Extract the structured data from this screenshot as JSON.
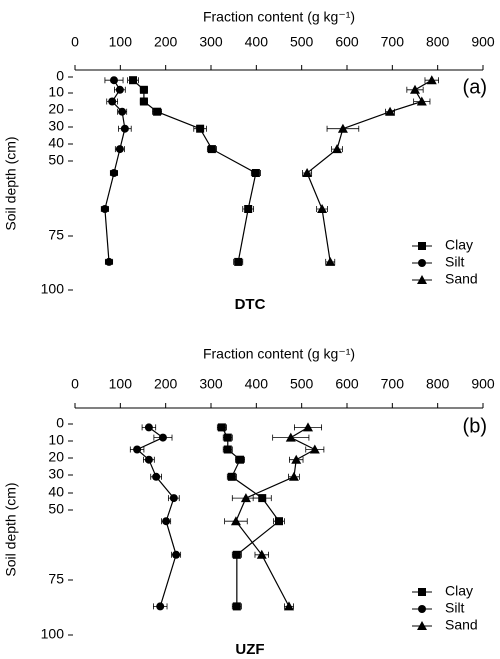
{
  "chart_data": [
    {
      "type": "line",
      "title": "DTC",
      "panel_label": "(a)",
      "x_label": "Fraction content (g kg⁻¹)",
      "y_label": "Soil depth (cm)",
      "xlim": [
        0,
        900
      ],
      "xticks": [
        0,
        100,
        200,
        300,
        400,
        500,
        600,
        700,
        800,
        900
      ],
      "ylim": [
        0,
        100
      ],
      "yticks": [
        0,
        10,
        20,
        30,
        40,
        50,
        75,
        100
      ],
      "y_inverted": true,
      "depths": [
        2,
        8,
        15,
        21,
        31,
        43,
        54,
        66,
        87
      ],
      "legend": "lower right",
      "series": [
        {
          "name": "Clay",
          "marker": "square",
          "color": "#000000",
          "values": [
            128,
            152,
            152,
            181,
            276,
            302,
            399,
            382,
            360
          ],
          "errors": [
            12,
            8,
            8,
            10,
            14,
            10,
            10,
            12,
            10
          ]
        },
        {
          "name": "Silt",
          "marker": "circle",
          "color": "#000000",
          "values": [
            86,
            99,
            82,
            104,
            110,
            99,
            86,
            66,
            75
          ],
          "errors": [
            20,
            12,
            12,
            10,
            14,
            10,
            8,
            8,
            8
          ]
        },
        {
          "name": "Sand",
          "marker": "triangle",
          "color": "#000000",
          "values": [
            787,
            750,
            765,
            695,
            591,
            578,
            512,
            545,
            563
          ],
          "errors": [
            15,
            18,
            18,
            10,
            35,
            12,
            10,
            12,
            10
          ]
        }
      ]
    },
    {
      "type": "line",
      "title": "UZF",
      "panel_label": "(b)",
      "x_label": "Fraction content (g kg⁻¹)",
      "y_label": "Soil depth (cm)",
      "xlim": [
        0,
        900
      ],
      "xticks": [
        0,
        100,
        200,
        300,
        400,
        500,
        600,
        700,
        800,
        900
      ],
      "ylim": [
        0,
        100
      ],
      "yticks": [
        0,
        10,
        20,
        30,
        40,
        50,
        75,
        100
      ],
      "y_inverted": true,
      "depths": [
        2,
        8,
        15,
        21,
        31,
        43,
        54,
        66,
        87
      ],
      "legend": "lower right",
      "series": [
        {
          "name": "Clay",
          "marker": "square",
          "color": "#000000",
          "values": [
            324,
            337,
            337,
            364,
            346,
            413,
            450,
            357,
            357
          ],
          "errors": [
            10,
            10,
            10,
            10,
            10,
            20,
            12,
            10,
            10
          ]
        },
        {
          "name": "Silt",
          "marker": "circle",
          "color": "#000000",
          "values": [
            163,
            194,
            137,
            163,
            179,
            218,
            201,
            223,
            188
          ],
          "errors": [
            15,
            20,
            15,
            12,
            12,
            12,
            10,
            10,
            15
          ]
        },
        {
          "name": "Sand",
          "marker": "triangle",
          "color": "#000000",
          "values": [
            514,
            476,
            529,
            488,
            483,
            377,
            355,
            412,
            472
          ],
          "errors": [
            30,
            40,
            20,
            15,
            12,
            30,
            25,
            15,
            10
          ]
        }
      ]
    }
  ]
}
